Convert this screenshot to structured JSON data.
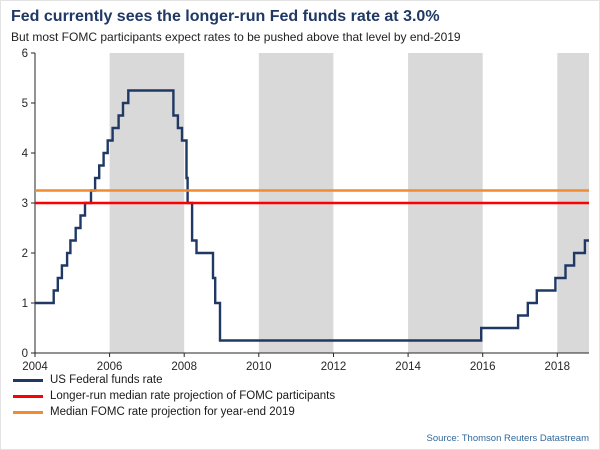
{
  "chart_data": {
    "type": "line",
    "title": "Fed currently sees the longer-run Fed funds rate at 3.0%",
    "subtitle": "But most FOMC participants expect rates to be pushed above that level by end-2019",
    "xlabel": "",
    "ylabel": "",
    "x_range": [
      2004,
      2018.85
    ],
    "y_range": [
      0,
      6
    ],
    "x_ticks": [
      2004,
      2006,
      2008,
      2010,
      2012,
      2014,
      2016,
      2018
    ],
    "y_ticks": [
      0,
      1,
      2,
      3,
      4,
      5,
      6
    ],
    "grid": false,
    "legend_position": "bottom-left",
    "band_color": "#D9D9D9",
    "shaded_bands": [
      [
        2006,
        2008
      ],
      [
        2010,
        2012
      ],
      [
        2014,
        2016
      ],
      [
        2018,
        2018.85
      ]
    ],
    "series": [
      {
        "name": "US Federal funds rate",
        "type": "step",
        "color": "#1F3864",
        "points": [
          [
            2004.0,
            1.0
          ],
          [
            2004.5,
            1.25
          ],
          [
            2004.61,
            1.5
          ],
          [
            2004.72,
            1.75
          ],
          [
            2004.86,
            2.0
          ],
          [
            2004.95,
            2.25
          ],
          [
            2005.09,
            2.5
          ],
          [
            2005.22,
            2.75
          ],
          [
            2005.34,
            3.0
          ],
          [
            2005.5,
            3.25
          ],
          [
            2005.61,
            3.5
          ],
          [
            2005.72,
            3.75
          ],
          [
            2005.84,
            4.0
          ],
          [
            2005.95,
            4.25
          ],
          [
            2006.08,
            4.5
          ],
          [
            2006.24,
            4.75
          ],
          [
            2006.36,
            5.0
          ],
          [
            2006.5,
            5.25
          ],
          [
            2007.71,
            4.75
          ],
          [
            2007.83,
            4.5
          ],
          [
            2007.94,
            4.25
          ],
          [
            2008.06,
            3.5
          ],
          [
            2008.09,
            3.0
          ],
          [
            2008.21,
            2.25
          ],
          [
            2008.33,
            2.0
          ],
          [
            2008.77,
            1.5
          ],
          [
            2008.83,
            1.0
          ],
          [
            2008.96,
            0.25
          ],
          [
            2015.96,
            0.5
          ],
          [
            2016.95,
            0.75
          ],
          [
            2017.21,
            1.0
          ],
          [
            2017.45,
            1.25
          ],
          [
            2017.95,
            1.5
          ],
          [
            2018.22,
            1.75
          ],
          [
            2018.45,
            2.0
          ],
          [
            2018.74,
            2.25
          ],
          [
            2018.85,
            2.25
          ]
        ]
      },
      {
        "name": "Longer-run median rate projection of FOMC participants",
        "type": "hline",
        "color": "#FF0000",
        "value": 3.0
      },
      {
        "name": "Median FOMC rate projection for year-end 2019",
        "type": "hline",
        "color": "#F28B30",
        "value": 3.25
      }
    ]
  },
  "footer": {
    "source_label": "Source: Thomson Reuters Datastream"
  },
  "colors": {
    "title": "#1F3864",
    "subtitle": "#1F1F1F",
    "axis": "#262626",
    "band": "#D9D9D9",
    "source": "#31689B",
    "background": "#FFFFFF"
  }
}
